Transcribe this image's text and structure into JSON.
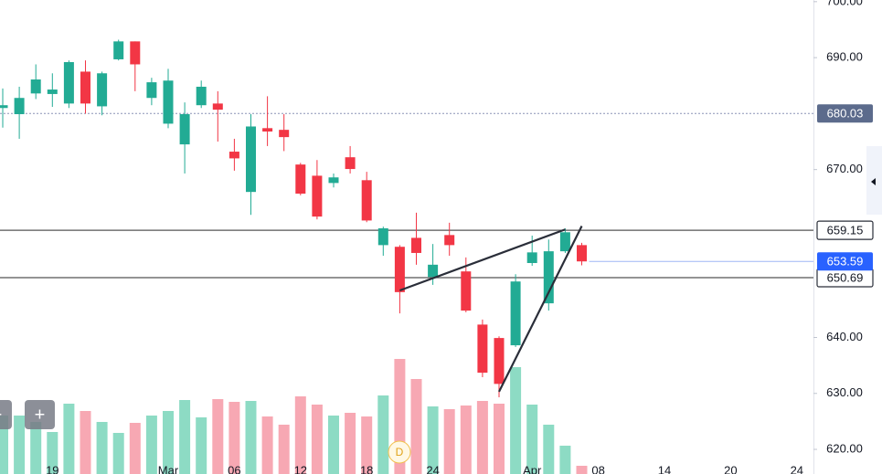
{
  "chart_data": {
    "type": "candlestick",
    "categories": [
      null,
      null,
      null,
      "19",
      null,
      null,
      null,
      null,
      null,
      null,
      "Mar",
      null,
      null,
      null,
      "06",
      null,
      null,
      null,
      "12",
      null,
      null,
      null,
      "18",
      null,
      null,
      null,
      "24",
      null,
      null,
      null,
      null,
      null,
      "Apr",
      null,
      null,
      null,
      "08",
      null,
      null,
      null,
      "14",
      null,
      null,
      null,
      "20",
      null,
      null,
      null,
      "24"
    ],
    "open": [
      681.0,
      679.9,
      683.6,
      683.5,
      681.8,
      687.5,
      681.3,
      689.7,
      692.9,
      682.8,
      678.2,
      674.5,
      681.5,
      681.8,
      673.2,
      666.0,
      677.4,
      677.1,
      670.9,
      668.9,
      667.6,
      672.2,
      668.1,
      656.5,
      656.2,
      657.8,
      650.8,
      658.3,
      651.8,
      642.3,
      639.9,
      638.6,
      653.3,
      646.1,
      655.4,
      656.5,
      null,
      null,
      null,
      null,
      null,
      null,
      null,
      null,
      null,
      null,
      null,
      null,
      null
    ],
    "high": [
      684.5,
      684.8,
      688.8,
      687.2,
      689.5,
      689.5,
      687.5,
      693.2,
      692.9,
      686.4,
      688.0,
      682.0,
      685.9,
      684.0,
      675.5,
      679.9,
      683.1,
      679.9,
      671.2,
      671.7,
      669.3,
      674.2,
      669.6,
      659.8,
      656.5,
      662.3,
      656.7,
      660.5,
      654.3,
      643.2,
      640.2,
      651.3,
      658.2,
      657.5,
      659.5,
      656.9,
      null,
      null,
      null,
      null,
      null,
      null,
      null,
      null,
      null,
      null,
      null,
      null,
      null
    ],
    "low": [
      677.5,
      675.5,
      682.6,
      681.2,
      681.0,
      680.0,
      679.7,
      689.5,
      684.0,
      681.5,
      677.4,
      669.3,
      681.0,
      675.0,
      669.8,
      661.9,
      674.2,
      673.3,
      665.4,
      661.1,
      666.8,
      669.3,
      660.6,
      654.6,
      644.3,
      653.0,
      649.4,
      654.6,
      644.5,
      632.9,
      629.3,
      638.3,
      652.8,
      644.8,
      655.1,
      652.9,
      null,
      null,
      null,
      null,
      null,
      null,
      null,
      null,
      null,
      null,
      null,
      null,
      null
    ],
    "close": [
      681.5,
      682.8,
      686.1,
      684.3,
      689.2,
      681.8,
      687.2,
      692.9,
      688.8,
      685.6,
      685.9,
      679.9,
      684.8,
      680.7,
      672.0,
      677.7,
      676.8,
      675.8,
      665.7,
      661.6,
      668.6,
      670.1,
      660.9,
      659.5,
      648.1,
      655.1,
      653.0,
      656.5,
      644.8,
      633.7,
      631.7,
      650.0,
      655.2,
      655.4,
      658.8,
      653.59,
      null,
      null,
      null,
      null,
      null,
      null,
      null,
      null,
      null,
      null,
      null,
      null,
      null
    ],
    "volume": [
      64,
      64,
      57,
      46,
      77,
      69,
      57,
      45,
      56,
      64,
      69,
      81,
      62,
      82,
      79,
      80,
      63,
      54,
      85,
      76,
      64,
      67,
      63,
      86,
      126,
      104,
      74,
      71,
      75,
      80,
      77,
      117,
      76,
      54,
      31,
      9,
      null,
      null,
      null,
      null,
      null,
      null,
      null,
      null,
      null,
      null,
      null,
      null,
      null
    ],
    "up_color": "#22ab94",
    "down_color": "#f23645",
    "volume_up_color": "#8ddbc4",
    "volume_down_color": "#f7a8b3",
    "ylim": [
      615.6,
      700.3
    ],
    "volume_ylim": [
      0,
      200
    ],
    "yticks": [
      {
        "value": 620,
        "label": "620.00"
      },
      {
        "value": 630,
        "label": "630.00"
      },
      {
        "value": 640,
        "label": "640.00"
      },
      {
        "value": 670,
        "label": "670.00"
      },
      {
        "value": 690,
        "label": "690.00"
      },
      {
        "value": 700,
        "label": "700.00"
      }
    ],
    "horizontal_lines": [
      659.15,
      650.69
    ],
    "dotted_line": 680.03,
    "trendlines": [
      {
        "from": [
          24,
          648.4
        ],
        "to": [
          34,
          659.3
        ]
      },
      {
        "from": [
          30,
          630.3
        ],
        "to": [
          35,
          659.9
        ]
      }
    ],
    "event_marker": "D",
    "zoom_buttons": [
      "−",
      "+"
    ]
  }
}
